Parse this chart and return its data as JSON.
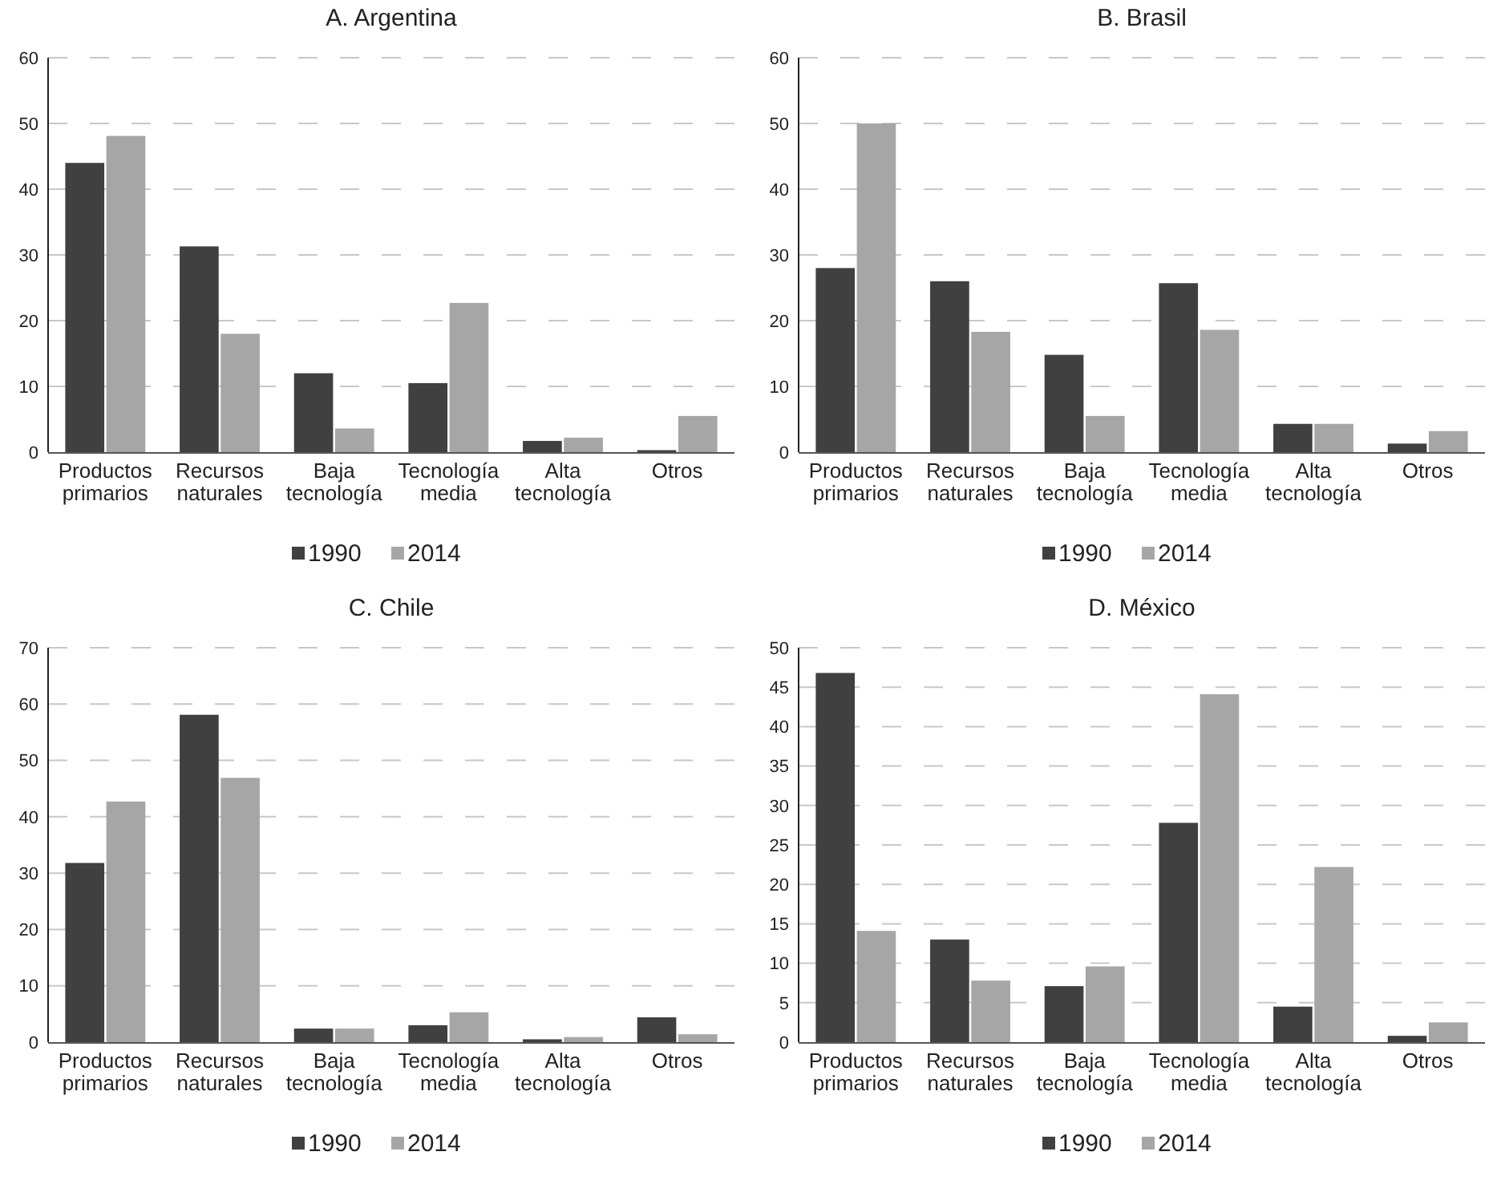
{
  "chart_data": [
    {
      "type": "bar",
      "title": "A. Argentina",
      "categories": [
        "Productos primarios",
        "Recursos naturales",
        "Baja tecnología",
        "Tecnología media",
        "Alta tecnología",
        "Otros"
      ],
      "series": [
        {
          "name": "1990",
          "color": "#404040",
          "values": [
            44,
            31.3,
            12,
            10.5,
            1.7,
            0.3
          ]
        },
        {
          "name": "2014",
          "color": "#a6a6a6",
          "values": [
            48.1,
            18,
            3.6,
            22.7,
            2.2,
            5.5
          ]
        }
      ],
      "ylim": [
        0,
        60
      ],
      "yticks": [
        0,
        10,
        20,
        30,
        40,
        50,
        60
      ],
      "grid": "y",
      "legend": "bottom"
    },
    {
      "type": "bar",
      "title": "B. Brasil",
      "categories": [
        "Productos primarios",
        "Recursos naturales",
        "Baja tecnología",
        "Tecnología media",
        "Alta tecnología",
        "Otros"
      ],
      "series": [
        {
          "name": "1990",
          "color": "#404040",
          "values": [
            28,
            26,
            14.8,
            25.7,
            4.3,
            1.3
          ]
        },
        {
          "name": "2014",
          "color": "#a6a6a6",
          "values": [
            50,
            18.3,
            5.5,
            18.6,
            4.3,
            3.2
          ]
        }
      ],
      "ylim": [
        0,
        60
      ],
      "yticks": [
        0,
        10,
        20,
        30,
        40,
        50,
        60
      ],
      "grid": "y",
      "legend": "bottom"
    },
    {
      "type": "bar",
      "title": "C. Chile",
      "categories": [
        "Productos primarios",
        "Recursos naturales",
        "Baja tecnología",
        "Tecnología media",
        "Alta tecnología",
        "Otros"
      ],
      "series": [
        {
          "name": "1990",
          "color": "#404040",
          "values": [
            31.8,
            58.1,
            2.4,
            3,
            0.5,
            4.4
          ]
        },
        {
          "name": "2014",
          "color": "#a6a6a6",
          "values": [
            42.7,
            46.9,
            2.4,
            5.3,
            0.9,
            1.4
          ]
        }
      ],
      "ylim": [
        0,
        70
      ],
      "yticks": [
        0,
        10,
        20,
        30,
        40,
        50,
        60,
        70
      ],
      "grid": "y",
      "legend": "bottom"
    },
    {
      "type": "bar",
      "title": "D. México",
      "categories": [
        "Productos primarios",
        "Recursos naturales",
        "Baja tecnología",
        "Tecnología media",
        "Alta tecnología",
        "Otros"
      ],
      "series": [
        {
          "name": "1990",
          "color": "#404040",
          "values": [
            46.8,
            13,
            7.1,
            27.8,
            4.5,
            0.8
          ]
        },
        {
          "name": "2014",
          "color": "#a6a6a6",
          "values": [
            14.1,
            7.8,
            9.6,
            44.1,
            22.2,
            2.5
          ]
        }
      ],
      "ylim": [
        0,
        50
      ],
      "yticks": [
        0,
        5,
        10,
        15,
        20,
        25,
        30,
        35,
        40,
        45,
        50
      ],
      "grid": "y",
      "legend": "bottom"
    }
  ]
}
